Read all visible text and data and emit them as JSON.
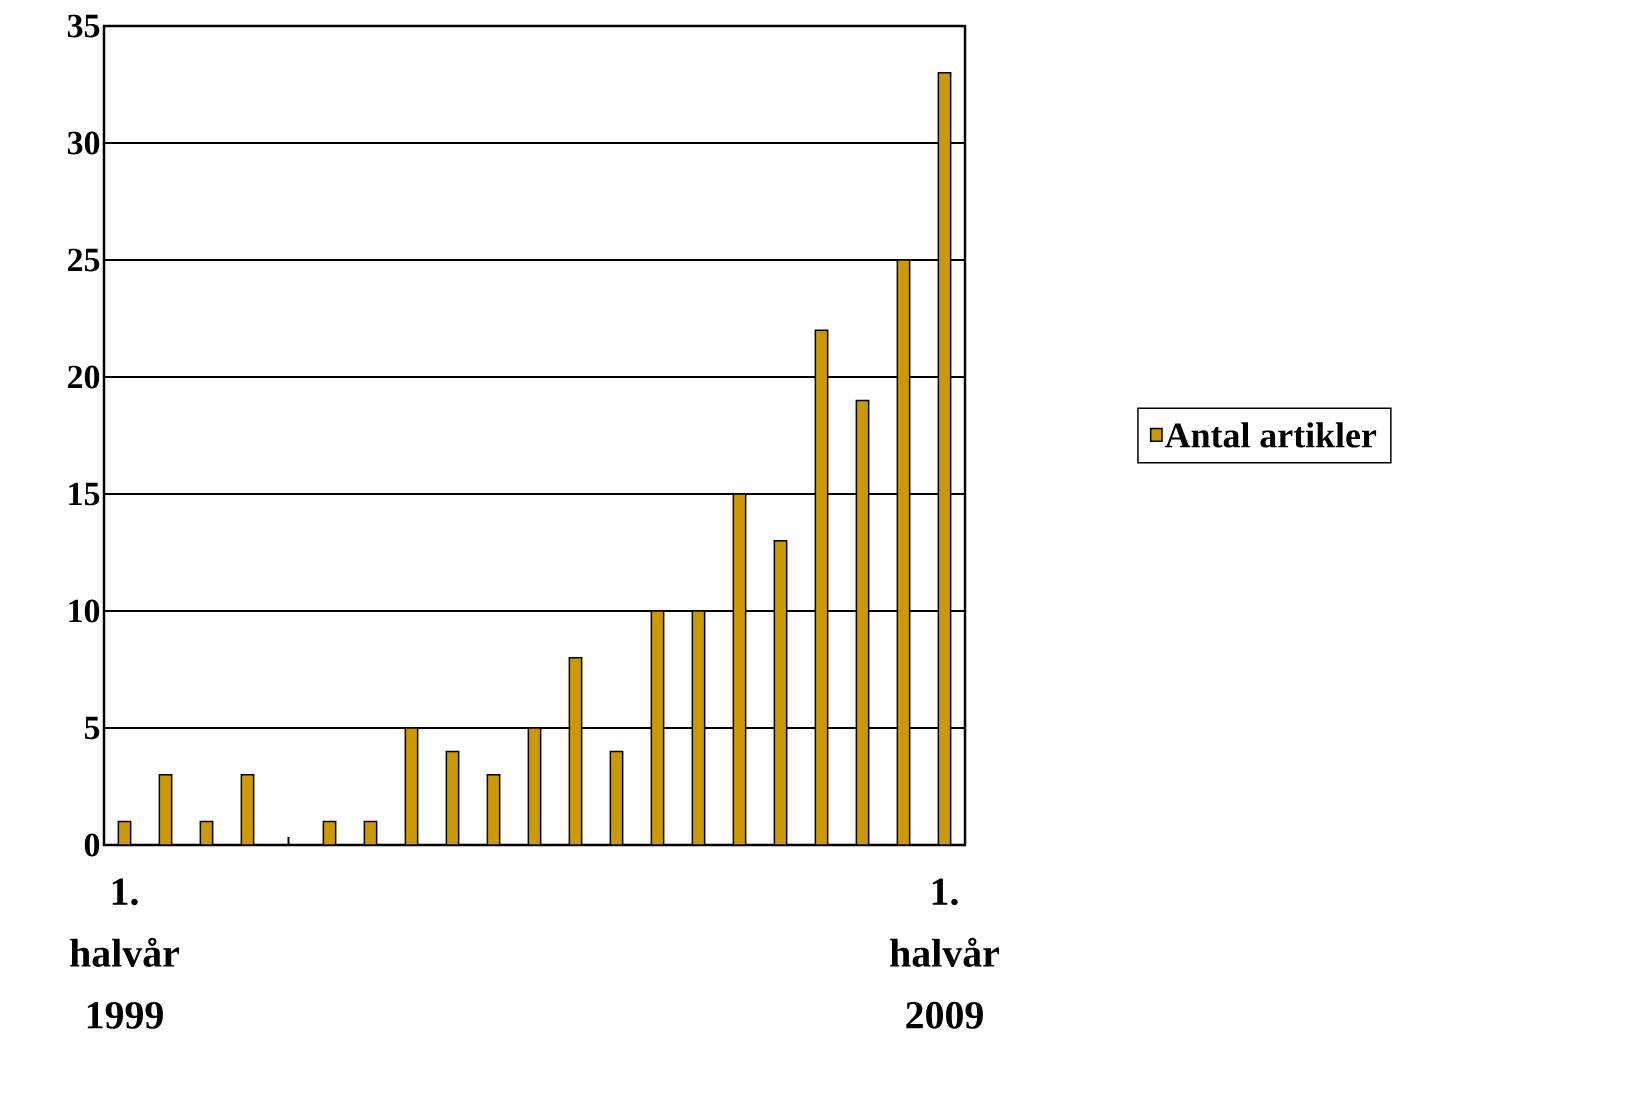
{
  "chart_data": {
    "type": "bar",
    "categories": [
      "1. halvår 1999",
      null,
      null,
      null,
      null,
      null,
      null,
      null,
      null,
      null,
      null,
      null,
      null,
      null,
      null,
      null,
      null,
      null,
      null,
      null,
      "1. halvår 2009"
    ],
    "series": [
      {
        "name": "Antal artikler",
        "color": "#cc9900",
        "values": [
          1,
          3,
          1,
          3,
          null,
          1,
          1,
          5,
          4,
          3,
          5,
          8,
          4,
          10,
          10,
          15,
          13,
          22,
          19,
          25,
          33
        ]
      }
    ],
    "ylim": [
      0,
      35
    ],
    "yticks": [
      0,
      5,
      10,
      15,
      20,
      25,
      30,
      35
    ],
    "grid": "y",
    "legend": "right"
  }
}
